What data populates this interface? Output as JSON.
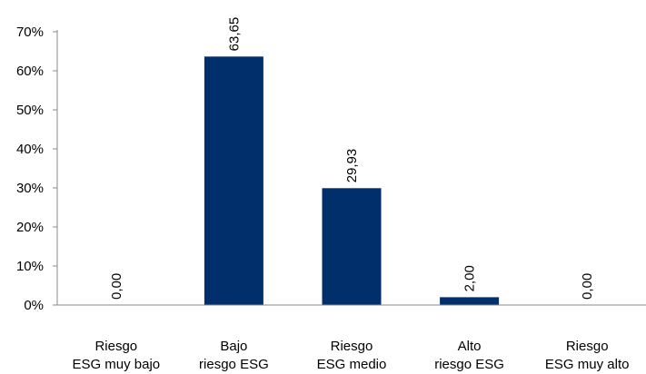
{
  "chart_data": {
    "type": "bar",
    "categories": [
      [
        "Riesgo",
        "ESG muy bajo"
      ],
      [
        "Bajo",
        "riesgo ESG"
      ],
      [
        "Riesgo",
        "ESG medio"
      ],
      [
        "Alto",
        "riesgo ESG"
      ],
      [
        "Riesgo",
        "ESG muy alto"
      ]
    ],
    "values": [
      0.0,
      63.65,
      29.93,
      2.0,
      0.0
    ],
    "data_labels": [
      "0,00",
      "63,65",
      "29,93",
      "2,00",
      "0,00"
    ],
    "ylim": [
      0,
      70
    ],
    "yticks": [
      0,
      10,
      20,
      30,
      40,
      50,
      60,
      70
    ],
    "ytick_labels": [
      "0%",
      "10%",
      "20%",
      "30%",
      "40%",
      "50%",
      "60%",
      "70%"
    ],
    "bar_color": "#002f6c",
    "grid": false,
    "legend": "none",
    "title": "",
    "xlabel": "",
    "ylabel": ""
  }
}
